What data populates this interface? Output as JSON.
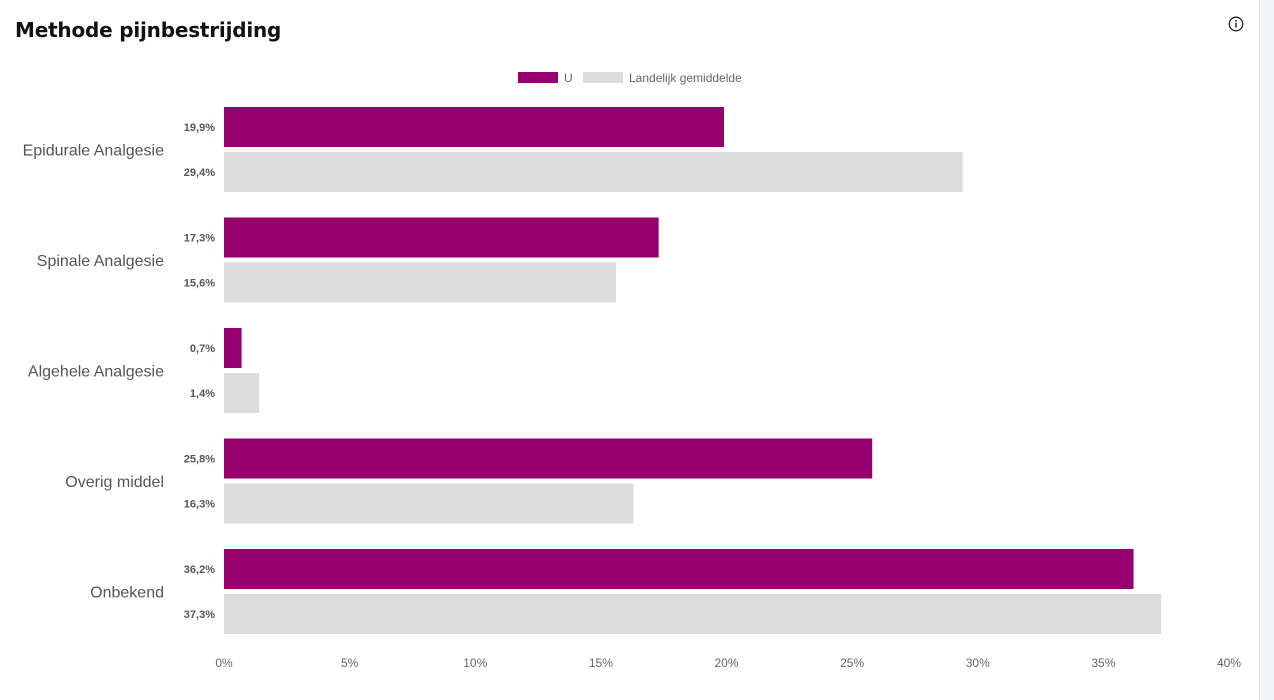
{
  "header": {
    "title": "Methode pijnbestrijding",
    "info_icon": "info-icon"
  },
  "chart_data": {
    "type": "bar",
    "orientation": "horizontal",
    "categories": [
      "Epidurale Analgesie",
      "Spinale Analgesie",
      "Algehele Analgesie",
      "Overig middel",
      "Onbekend"
    ],
    "series": [
      {
        "name": "U",
        "color": "#95006e",
        "values": [
          19.9,
          17.3,
          0.7,
          25.8,
          36.2
        ],
        "labels": [
          "19,9%",
          "17,3%",
          "0,7%",
          "25,8%",
          "36,2%"
        ]
      },
      {
        "name": "Landelijk gemiddelde",
        "color": "#dcdcdc",
        "values": [
          29.4,
          15.6,
          1.4,
          16.3,
          37.3
        ],
        "labels": [
          "29,4%",
          "15,6%",
          "1,4%",
          "16,3%",
          "37,3%"
        ]
      }
    ],
    "xlim": [
      0,
      40
    ],
    "xticks": [
      0,
      5,
      10,
      15,
      20,
      25,
      30,
      35,
      40
    ],
    "xtick_labels": [
      "0%",
      "5%",
      "10%",
      "15%",
      "20%",
      "25%",
      "30%",
      "35%",
      "40%"
    ],
    "grid": false,
    "legend_position": "top-center"
  }
}
